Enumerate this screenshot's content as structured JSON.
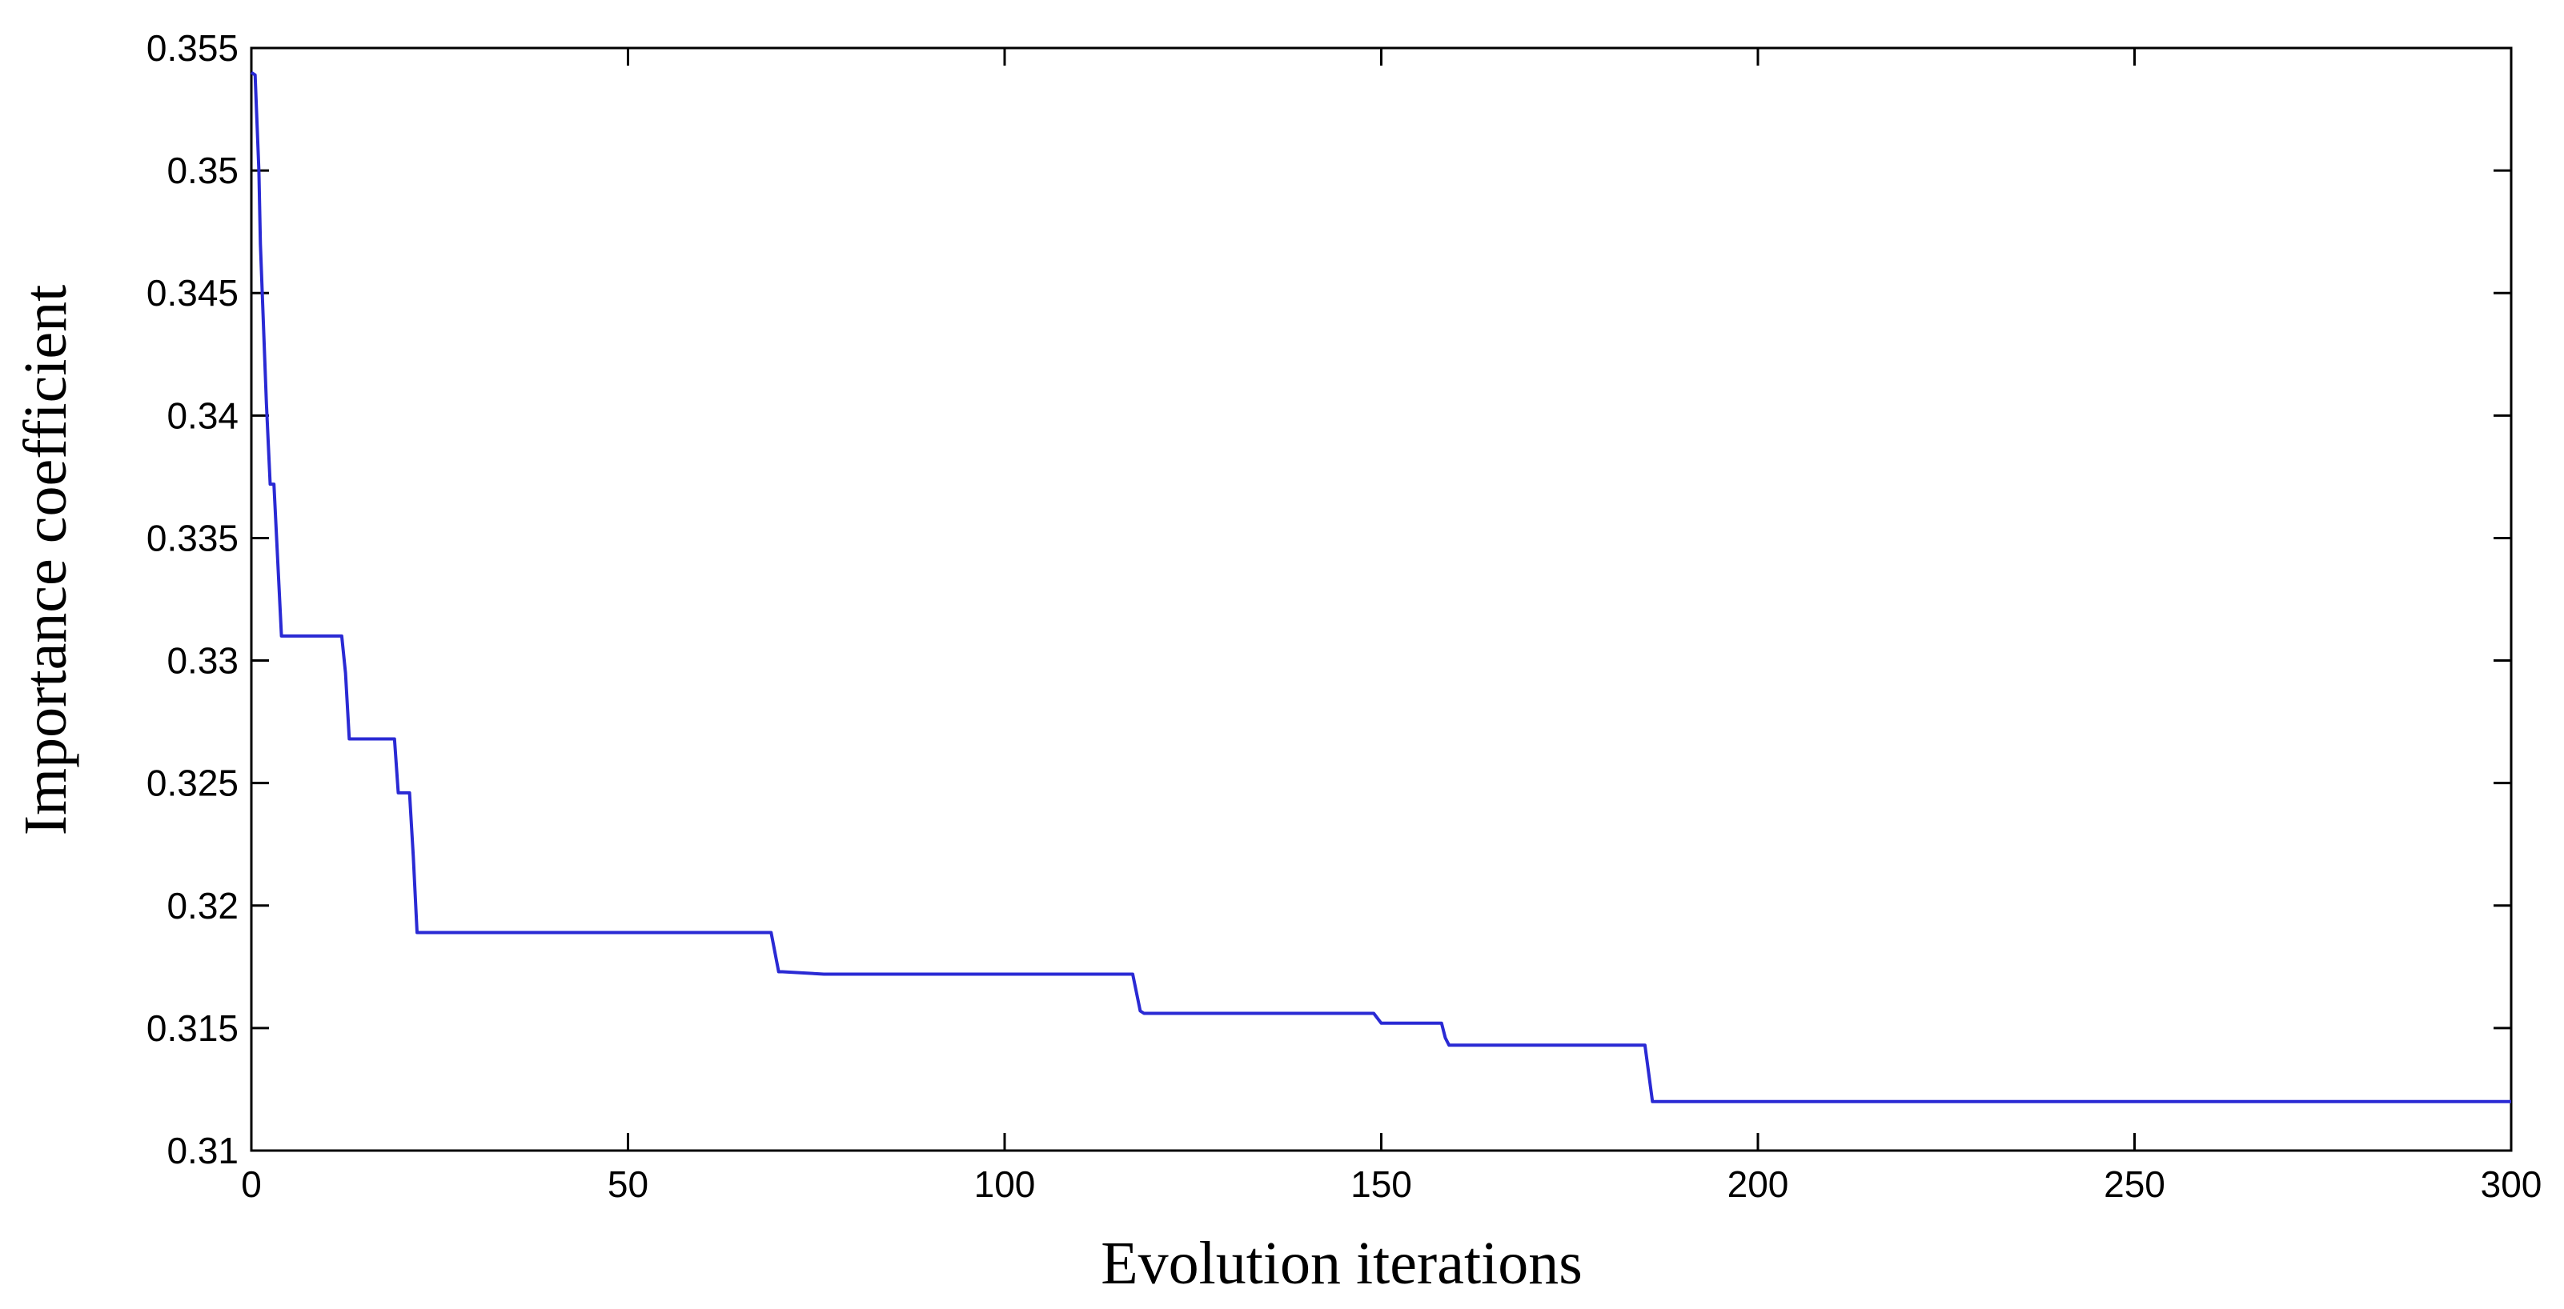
{
  "chart_data": {
    "type": "line",
    "title": "",
    "xlabel": "Evolution iterations",
    "ylabel": "Importance coefficient",
    "xlim": [
      0,
      300
    ],
    "ylim": [
      0.31,
      0.355
    ],
    "xticks": [
      0,
      50,
      100,
      150,
      200,
      250,
      300
    ],
    "xtick_labels": [
      "0",
      "50",
      "100",
      "150",
      "200",
      "250",
      "300"
    ],
    "yticks": [
      0.31,
      0.315,
      0.32,
      0.325,
      0.33,
      0.335,
      0.34,
      0.345,
      0.35,
      0.355
    ],
    "ytick_labels": [
      "0.31",
      "0.315",
      "0.32",
      "0.325",
      "0.33",
      "0.335",
      "0.34",
      "0.345",
      "0.35",
      "0.355"
    ],
    "grid": false,
    "line_color": "#2a2ad4",
    "series": [
      {
        "x": [
          0,
          0.5,
          1,
          1.2,
          2,
          2.5,
          3,
          4,
          12,
          12.5,
          13,
          19,
          19.5,
          20,
          21,
          21.5,
          22,
          69,
          70,
          70.5,
          76,
          117,
          118,
          118.5,
          149,
          150,
          150.5,
          158,
          158.5,
          159,
          185,
          186,
          186.5,
          300
        ],
        "y": [
          0.354,
          0.3539,
          0.35,
          0.347,
          0.3405,
          0.3372,
          0.3372,
          0.331,
          0.331,
          0.3295,
          0.3268,
          0.3268,
          0.3246,
          0.3246,
          0.3246,
          0.322,
          0.3189,
          0.3189,
          0.3173,
          0.3173,
          0.3172,
          0.3172,
          0.3157,
          0.3156,
          0.3156,
          0.3152,
          0.3152,
          0.3152,
          0.3146,
          0.3143,
          0.3143,
          0.312,
          0.312,
          0.312
        ]
      }
    ]
  }
}
